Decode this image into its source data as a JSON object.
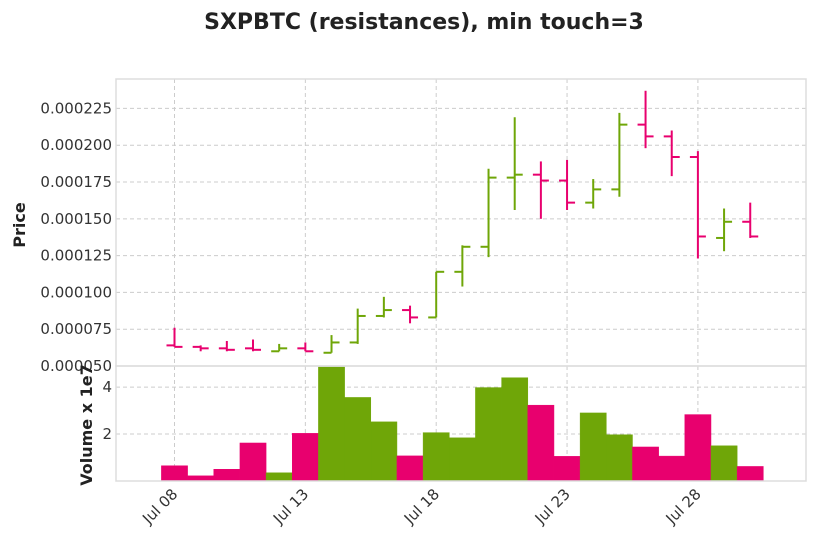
{
  "chart_data": {
    "type": "ohlc",
    "title": "SXPBTC (resistances), min touch=3",
    "ylabel_price": "Price",
    "ylabel_volume": "Volume x 1e7",
    "price_ylim": [
      5e-05,
      0.000245
    ],
    "price_ticks": [
      "0.000050",
      "0.000075",
      "0.000100",
      "0.000125",
      "0.000150",
      "0.000175",
      "0.000200",
      "0.000225"
    ],
    "volume_ylim": [
      0,
      4.9
    ],
    "volume_ticks": [
      "2",
      "4"
    ],
    "x_ticks": [
      {
        "label": "Jul 08",
        "index": 0
      },
      {
        "label": "Jul 13",
        "index": 5
      },
      {
        "label": "Jul 18",
        "index": 10
      },
      {
        "label": "Jul 23",
        "index": 15
      },
      {
        "label": "Jul 28",
        "index": 20
      }
    ],
    "up_color": "#6fa608",
    "down_color": "#e8006e",
    "candles": [
      {
        "date": "Jul 08",
        "o": 6.4e-05,
        "h": 7.6e-05,
        "l": 6.3e-05,
        "c": 6.3e-05,
        "v": 0.65
      },
      {
        "date": "Jul 09",
        "o": 6.3e-05,
        "h": 6.4e-05,
        "l": 6e-05,
        "c": 6.2e-05,
        "v": 0.22
      },
      {
        "date": "Jul 10",
        "o": 6.2e-05,
        "h": 6.7e-05,
        "l": 6e-05,
        "c": 6.1e-05,
        "v": 0.5
      },
      {
        "date": "Jul 11",
        "o": 6.2e-05,
        "h": 6.8e-05,
        "l": 6e-05,
        "c": 6.1e-05,
        "v": 1.62
      },
      {
        "date": "Jul 12",
        "o": 6e-05,
        "h": 6.5e-05,
        "l": 6e-05,
        "c": 6.2e-05,
        "v": 0.35
      },
      {
        "date": "Jul 13",
        "o": 6.2e-05,
        "h": 6.6e-05,
        "l": 6e-05,
        "c": 6e-05,
        "v": 2.03
      },
      {
        "date": "Jul 14",
        "o": 5.9e-05,
        "h": 7.1e-05,
        "l": 5.9e-05,
        "c": 6.6e-05,
        "v": 4.86
      },
      {
        "date": "Jul 15",
        "o": 6.6e-05,
        "h": 8.9e-05,
        "l": 6.5e-05,
        "c": 8.4e-05,
        "v": 3.56
      },
      {
        "date": "Jul 16",
        "o": 8.4e-05,
        "h": 9.7e-05,
        "l": 8.3e-05,
        "c": 8.8e-05,
        "v": 2.52
      },
      {
        "date": "Jul 17",
        "o": 8.8e-05,
        "h": 9.1e-05,
        "l": 7.9e-05,
        "c": 8.3e-05,
        "v": 1.07
      },
      {
        "date": "Jul 18",
        "o": 8.3e-05,
        "h": 0.000114,
        "l": 8.3e-05,
        "c": 0.000114,
        "v": 2.06
      },
      {
        "date": "Jul 19",
        "o": 0.000114,
        "h": 0.000132,
        "l": 0.000104,
        "c": 0.000131,
        "v": 1.84
      },
      {
        "date": "Jul 20",
        "o": 0.000131,
        "h": 0.000184,
        "l": 0.000124,
        "c": 0.000178,
        "v": 3.98
      },
      {
        "date": "Jul 21",
        "o": 0.000178,
        "h": 0.000219,
        "l": 0.000156,
        "c": 0.00018,
        "v": 4.4
      },
      {
        "date": "Jul 22",
        "o": 0.00018,
        "h": 0.000189,
        "l": 0.00015,
        "c": 0.000176,
        "v": 3.23
      },
      {
        "date": "Jul 23",
        "o": 0.000176,
        "h": 0.00019,
        "l": 0.000156,
        "c": 0.000161,
        "v": 1.05
      },
      {
        "date": "Jul 24",
        "o": 0.000161,
        "h": 0.000177,
        "l": 0.000157,
        "c": 0.00017,
        "v": 2.9
      },
      {
        "date": "Jul 25",
        "o": 0.00017,
        "h": 0.000222,
        "l": 0.000165,
        "c": 0.000214,
        "v": 1.97
      },
      {
        "date": "Jul 26",
        "o": 0.000214,
        "h": 0.000237,
        "l": 0.000198,
        "c": 0.000206,
        "v": 1.45
      },
      {
        "date": "Jul 27",
        "o": 0.000206,
        "h": 0.00021,
        "l": 0.000179,
        "c": 0.000192,
        "v": 1.06
      },
      {
        "date": "Jul 28",
        "o": 0.000192,
        "h": 0.000196,
        "l": 0.000123,
        "c": 0.000138,
        "v": 2.83
      },
      {
        "date": "Jul 29",
        "o": 0.000137,
        "h": 0.000157,
        "l": 0.000128,
        "c": 0.000148,
        "v": 1.5
      },
      {
        "date": "Jul 30",
        "o": 0.000148,
        "h": 0.000161,
        "l": 0.000137,
        "c": 0.000138,
        "v": 0.62
      }
    ]
  }
}
